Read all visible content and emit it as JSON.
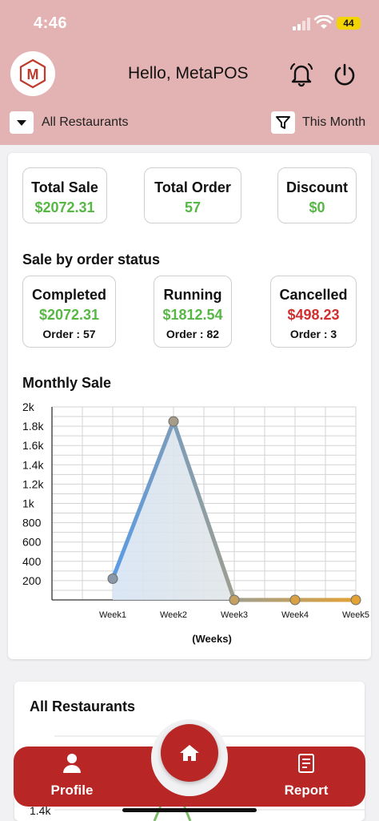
{
  "status_bar": {
    "time": "4:46",
    "battery": "44"
  },
  "header": {
    "greeting": "Hello, MetaPOS",
    "logo_letter": "M"
  },
  "filters": {
    "restaurant": "All Restaurants",
    "period": "This Month"
  },
  "summary": {
    "total_sale": {
      "label": "Total Sale",
      "value": "$2072.31"
    },
    "total_order": {
      "label": "Total Order",
      "value": "57"
    },
    "discount": {
      "label": "Discount",
      "value": "$0"
    }
  },
  "order_status": {
    "title": "Sale by order status",
    "completed": {
      "label": "Completed",
      "value": "$2072.31",
      "orders": "Order : 57"
    },
    "running": {
      "label": "Running",
      "value": "$1812.54",
      "orders": "Order : 82"
    },
    "cancelled": {
      "label": "Cancelled",
      "value": "$498.23",
      "orders": "Order : 3"
    }
  },
  "monthly": {
    "title": "Monthly Sale"
  },
  "chart_data": {
    "type": "line",
    "x": [
      "Week1",
      "Week2",
      "Week3",
      "Week4",
      "Week5"
    ],
    "values": [
      220,
      1850,
      0,
      0,
      0
    ],
    "ylim": [
      0,
      2000
    ],
    "yticks": [
      "200",
      "400",
      "600",
      "800",
      "1k",
      "1.2k",
      "1.4k",
      "1.6k",
      "1.8k",
      "2k"
    ],
    "xlabel": "(Weeks)",
    "ylabel": "",
    "grid": true,
    "colors": {
      "start": "#5a9be6",
      "end": "#e3a236"
    }
  },
  "restaurants_card": {
    "title": "All Restaurants",
    "tick": "1.4k"
  },
  "nav": {
    "profile": "Profile",
    "report": "Report"
  },
  "colors": {
    "brand": "#b82626",
    "header_bg": "#e3b2b2",
    "positive": "#57b745",
    "negative": "#d12f2f"
  }
}
